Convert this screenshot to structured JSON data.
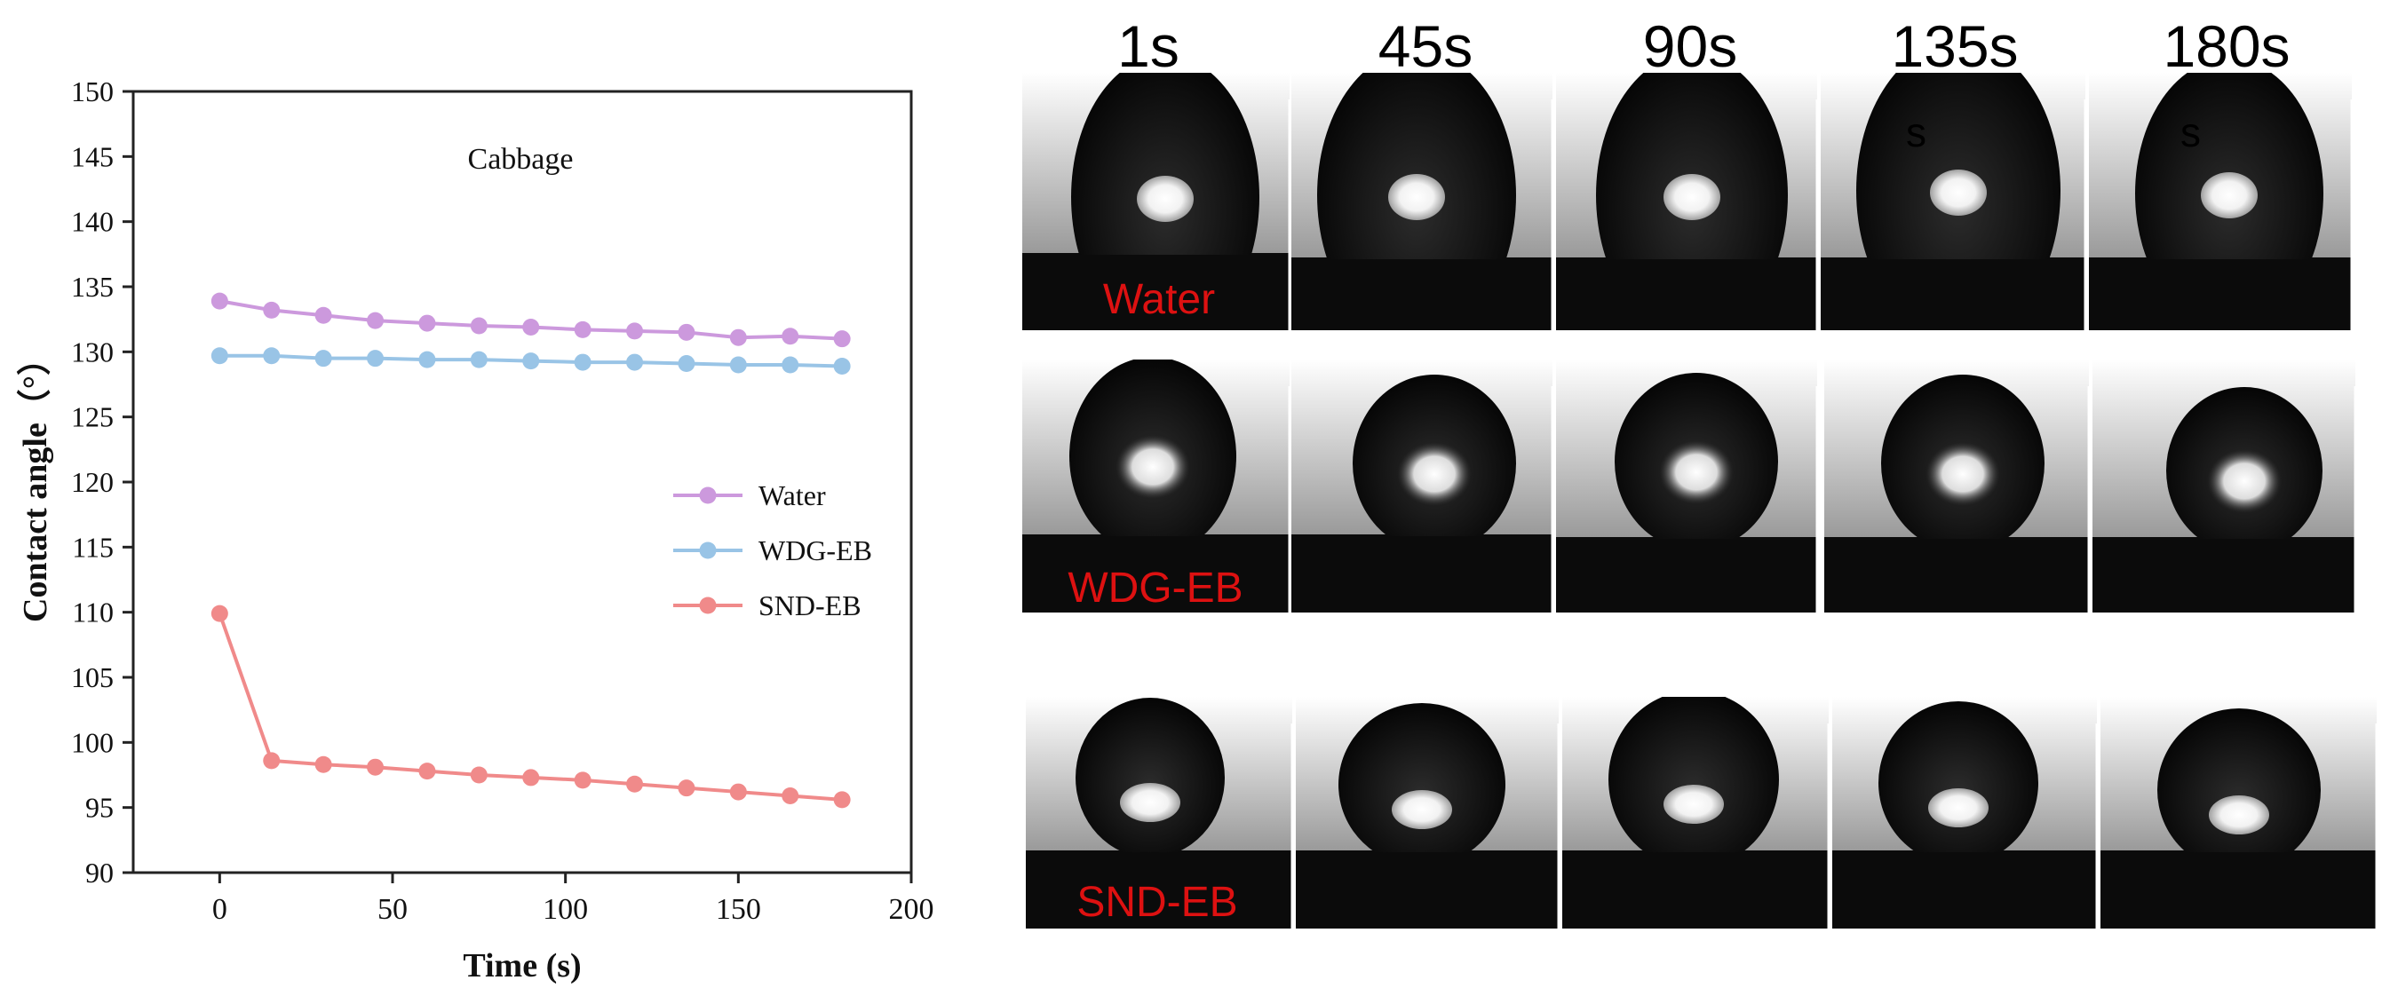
{
  "chart_data": {
    "type": "line",
    "title": "Cabbage",
    "xlabel": "Time (s)",
    "ylabel": "Contact angle（°）",
    "xlim": [
      -25,
      200
    ],
    "ylim": [
      90,
      150
    ],
    "xticks": [
      0,
      50,
      100,
      150,
      200
    ],
    "yticks": [
      90,
      95,
      100,
      105,
      110,
      115,
      120,
      125,
      130,
      135,
      140,
      145,
      150
    ],
    "x": [
      0,
      15,
      30,
      45,
      60,
      75,
      90,
      105,
      120,
      135,
      150,
      165,
      180
    ],
    "legend_position": "center-right",
    "series": [
      {
        "name": "Water",
        "color": "#cc99dd",
        "values": [
          133.9,
          133.2,
          132.8,
          132.4,
          132.2,
          132.0,
          131.9,
          131.7,
          131.6,
          131.5,
          131.1,
          131.2,
          131.0
        ]
      },
      {
        "name": "WDG-EB",
        "color": "#99c4e6",
        "values": [
          129.7,
          129.7,
          129.5,
          129.5,
          129.4,
          129.4,
          129.3,
          129.2,
          129.2,
          129.1,
          129.0,
          129.0,
          128.9
        ]
      },
      {
        "name": "SND-EB",
        "color": "#f08a8a",
        "values": [
          109.9,
          98.6,
          98.3,
          98.1,
          97.8,
          97.5,
          97.3,
          97.1,
          96.8,
          96.5,
          96.2,
          95.9,
          95.6
        ]
      }
    ]
  },
  "photo_panel": {
    "time_labels": [
      "1s",
      "45s",
      "90s",
      "135s",
      "180s"
    ],
    "row_labels": [
      "Water",
      "WDG-EB",
      "SND-EB"
    ],
    "row_label_color": "#dd1111",
    "stray_marks": [
      "s",
      "s"
    ]
  }
}
